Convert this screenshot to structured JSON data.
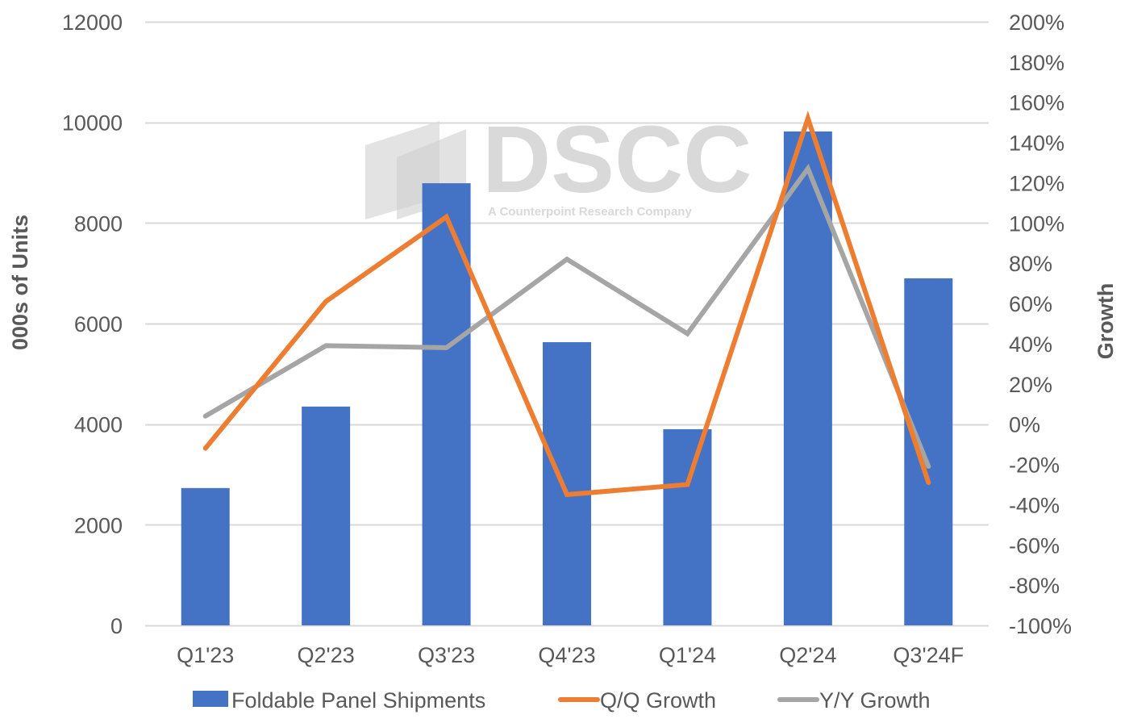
{
  "chart_data": {
    "type": "bar",
    "title": "",
    "categories": [
      "Q1'23",
      "Q2'23",
      "Q3'23",
      "Q4'23",
      "Q1'24",
      "Q2'24",
      "Q3'24F"
    ],
    "series": [
      {
        "name": "Foldable Panel Shipments",
        "type": "bar",
        "axis": "left",
        "color": "#4472C4",
        "values": [
          2730,
          4350,
          8790,
          5630,
          3900,
          9820,
          6900
        ]
      },
      {
        "name": "Q/Q Growth",
        "type": "line",
        "axis": "right",
        "unit": "%",
        "color": "#ED7D31",
        "values": [
          -12,
          61,
          103,
          -35,
          -30,
          152,
          -29
        ]
      },
      {
        "name": "Y/Y Growth",
        "type": "line",
        "axis": "right",
        "unit": "%",
        "color": "#A5A5A5",
        "values": [
          4,
          39,
          38,
          82,
          45,
          127,
          -21
        ]
      }
    ],
    "ylabel": "000s of Units",
    "ylim": [
      0,
      12000
    ],
    "yticks": [
      "0",
      "2000",
      "4000",
      "6000",
      "8000",
      "10000",
      "12000"
    ],
    "y2label": "Growth",
    "y2lim": [
      -100,
      200
    ],
    "y2ticks": [
      "-100%",
      "-80%",
      "-60%",
      "-40%",
      "-20%",
      "0%",
      "20%",
      "40%",
      "60%",
      "80%",
      "100%",
      "120%",
      "140%",
      "160%",
      "180%",
      "200%"
    ],
    "xlabel": "",
    "grid": true,
    "legend_position": "bottom"
  },
  "watermark": {
    "brand": "DSCC",
    "tagline": "A Counterpoint Research Company"
  }
}
